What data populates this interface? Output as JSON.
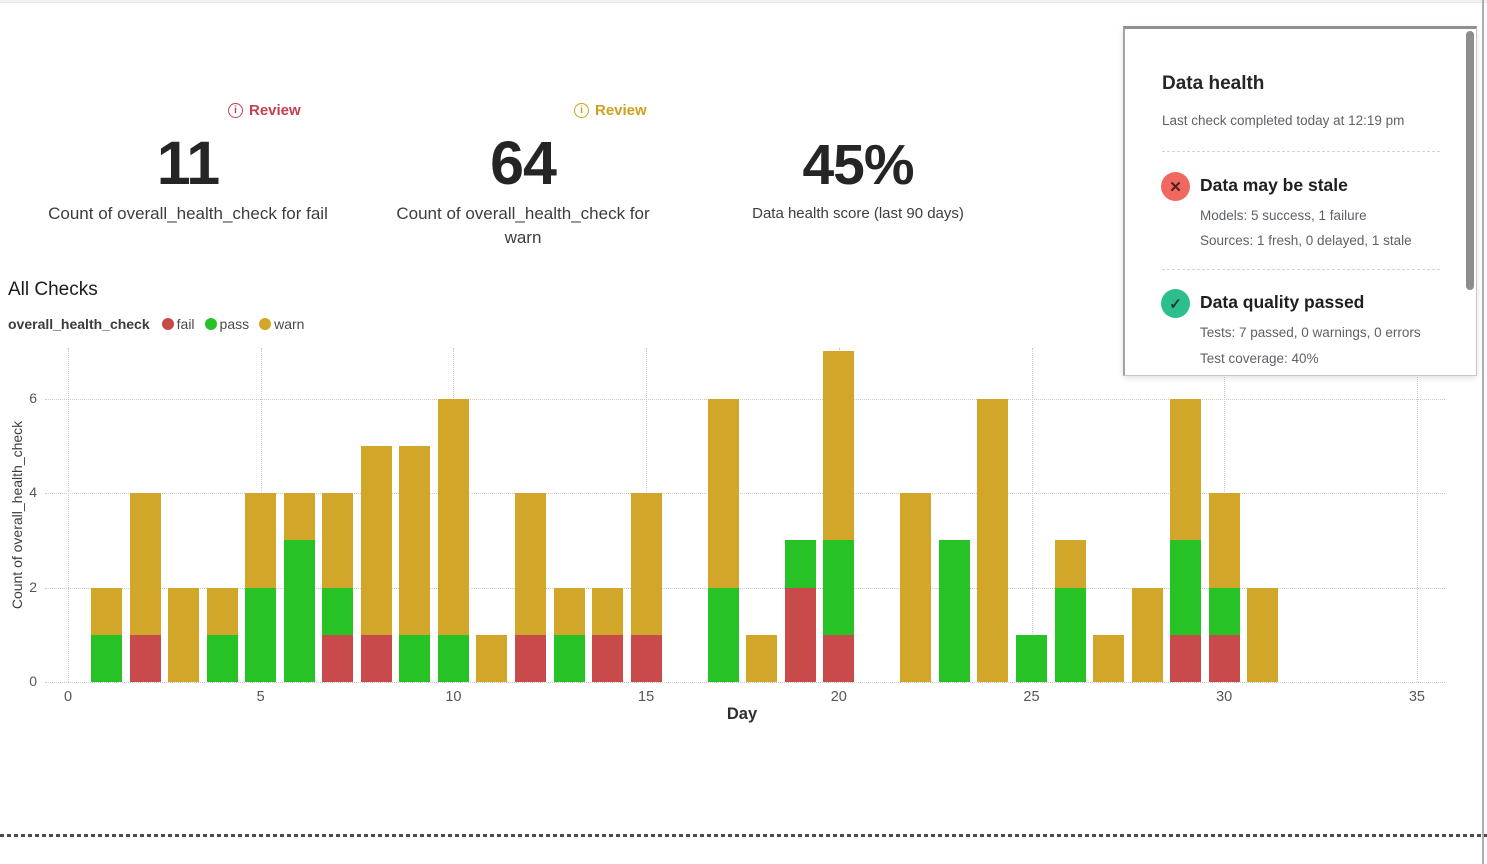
{
  "kpis": [
    {
      "review": "Review",
      "value": "11",
      "label": "Count of overall_health_check for fail",
      "accent": "#c63f51"
    },
    {
      "review": "Review",
      "value": "64",
      "label": "Count of overall_health_check for warn",
      "accent": "#cda11f"
    },
    {
      "value": "45%",
      "label": "Data health score (last 90 days)"
    }
  ],
  "all_checks": {
    "title": "All Checks",
    "legend": {
      "series": "overall_health_check",
      "items": [
        {
          "label": "fail",
          "color": "#c84a4a"
        },
        {
          "label": "pass",
          "color": "#26c226"
        },
        {
          "label": "warn",
          "color": "#d2a629"
        }
      ]
    }
  },
  "chart_data": {
    "type": "bar",
    "stacked": true,
    "title": "All Checks",
    "xlabel": "Day",
    "ylabel": "Count of overall_health_check",
    "xlim": [
      0,
      35
    ],
    "ylim": [
      0,
      7
    ],
    "x_ticks": [
      0,
      5,
      10,
      15,
      20,
      25,
      30,
      35
    ],
    "y_ticks": [
      0,
      2,
      4,
      6
    ],
    "grid": "dotted",
    "stack_order": [
      "fail",
      "pass",
      "warn"
    ],
    "colors": {
      "fail": "#c84a4a",
      "pass": "#26c226",
      "warn": "#d2a629"
    },
    "bars": [
      {
        "day": 1,
        "fail": 0,
        "pass": 1,
        "warn": 1
      },
      {
        "day": 2,
        "fail": 1,
        "pass": 0,
        "warn": 3
      },
      {
        "day": 3,
        "fail": 0,
        "pass": 0,
        "warn": 2
      },
      {
        "day": 4,
        "fail": 0,
        "pass": 1,
        "warn": 1
      },
      {
        "day": 5,
        "fail": 0,
        "pass": 2,
        "warn": 2
      },
      {
        "day": 6,
        "fail": 0,
        "pass": 3,
        "warn": 1
      },
      {
        "day": 7,
        "fail": 1,
        "pass": 1,
        "warn": 2
      },
      {
        "day": 8,
        "fail": 1,
        "pass": 0,
        "warn": 4
      },
      {
        "day": 9,
        "fail": 0,
        "pass": 1,
        "warn": 4
      },
      {
        "day": 10,
        "fail": 0,
        "pass": 1,
        "warn": 5
      },
      {
        "day": 11,
        "fail": 0,
        "pass": 0,
        "warn": 1
      },
      {
        "day": 12,
        "fail": 1,
        "pass": 0,
        "warn": 3
      },
      {
        "day": 13,
        "fail": 0,
        "pass": 1,
        "warn": 1
      },
      {
        "day": 14,
        "fail": 1,
        "pass": 0,
        "warn": 1
      },
      {
        "day": 15,
        "fail": 1,
        "pass": 0,
        "warn": 3
      },
      {
        "day": 17,
        "fail": 0,
        "pass": 2,
        "warn": 4
      },
      {
        "day": 18,
        "fail": 0,
        "pass": 0,
        "warn": 1
      },
      {
        "day": 19,
        "fail": 2,
        "pass": 1,
        "warn": 0
      },
      {
        "day": 20,
        "fail": 1,
        "pass": 2,
        "warn": 4
      },
      {
        "day": 22,
        "fail": 0,
        "pass": 0,
        "warn": 4
      },
      {
        "day": 23,
        "fail": 0,
        "pass": 3,
        "warn": 0
      },
      {
        "day": 24,
        "fail": 0,
        "pass": 0,
        "warn": 6
      },
      {
        "day": 25,
        "fail": 0,
        "pass": 1,
        "warn": 0
      },
      {
        "day": 26,
        "fail": 0,
        "pass": 2,
        "warn": 1
      },
      {
        "day": 27,
        "fail": 0,
        "pass": 0,
        "warn": 1
      },
      {
        "day": 28,
        "fail": 0,
        "pass": 0,
        "warn": 2
      },
      {
        "day": 29,
        "fail": 1,
        "pass": 2,
        "warn": 3
      },
      {
        "day": 30,
        "fail": 1,
        "pass": 1,
        "warn": 2
      },
      {
        "day": 31,
        "fail": 0,
        "pass": 0,
        "warn": 2
      }
    ]
  },
  "data_health_panel": {
    "title": "Data health",
    "subtitle": "Last check completed today at 12:19 pm",
    "items": [
      {
        "icon": "x-icon",
        "glyph": "✕",
        "circle_color": "#f0685f",
        "title": "Data may be stale",
        "lines": [
          "Models: 5 success, 1 failure",
          "Sources: 1 fresh, 0 delayed, 1 stale"
        ]
      },
      {
        "icon": "check-icon",
        "glyph": "✓",
        "circle_color": "#2cbe8c",
        "title": "Data quality passed",
        "lines": [
          "Tests: 7 passed, 0 warnings, 0 errors",
          "Test coverage: 40%"
        ]
      }
    ]
  }
}
